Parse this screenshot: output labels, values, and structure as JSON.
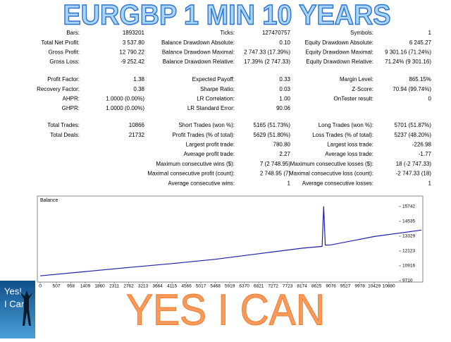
{
  "header": {
    "title": "EURGBP 1 MIN 10 YEARS"
  },
  "stats": [
    [
      [
        {
          "label": "Bars:",
          "value": "1893201"
        },
        {
          "label": "Ticks:",
          "value": "127470757"
        },
        {
          "label": "Symbols:",
          "value": "1"
        }
      ],
      [
        {
          "label": "Total Net Profit:",
          "value": "3 537.80"
        },
        {
          "label": "Balance Drawdown Absolute:",
          "value": "0.10"
        },
        {
          "label": "Equity Drawdown Absolute:",
          "value": "6 245.27"
        }
      ],
      [
        {
          "label": "Gross Profit:",
          "value": "12 790.22"
        },
        {
          "label": "Balance Drawdown Maximal:",
          "value": "2 747.33 (17.39%)"
        },
        {
          "label": "Equity Drawdown Maximal:",
          "value": "9 301.16 (71.24%)"
        }
      ],
      [
        {
          "label": "Gross Loss:",
          "value": "-9 252.42"
        },
        {
          "label": "Balance Drawdown Relative:",
          "value": "17.39% (2 747.33)"
        },
        {
          "label": "Equity Drawdown Relative:",
          "value": "71.24% (9 301.16)"
        }
      ]
    ],
    [
      [
        {
          "label": "Profit Factor:",
          "value": "1.38"
        },
        {
          "label": "Expected Payoff:",
          "value": "0.33"
        },
        {
          "label": "Margin Level:",
          "value": "865.15%"
        }
      ],
      [
        {
          "label": "Recovery Factor:",
          "value": "0.38"
        },
        {
          "label": "Sharpe Ratio:",
          "value": "0.03"
        },
        {
          "label": "Z-Score:",
          "value": "70.94 (99.74%)"
        }
      ],
      [
        {
          "label": "AHPR:",
          "value": "1.0000 (0.00%)"
        },
        {
          "label": "LR Correlation:",
          "value": "1.00"
        },
        {
          "label": "OnTester result:",
          "value": "0"
        }
      ],
      [
        {
          "label": "GHPR:",
          "value": "1.0000 (0.00%)"
        },
        {
          "label": "LR Standard Error:",
          "value": "90.06"
        },
        null
      ]
    ],
    [
      [
        {
          "label": "Total Trades:",
          "value": "10866"
        },
        {
          "label": "Short Trades (won %):",
          "value": "5165 (51.73%)"
        },
        {
          "label": "Long Trades (won %):",
          "value": "5701 (51.87%)"
        }
      ],
      [
        {
          "label": "Total Deals:",
          "value": "21732"
        },
        {
          "label": "Profit Trades (% of total):",
          "value": "5629 (51.80%)"
        },
        {
          "label": "Loss Trades (% of total):",
          "value": "5237 (48.20%)"
        }
      ],
      [
        null,
        {
          "label": "Largest profit trade:",
          "value": "780.80"
        },
        {
          "label": "Largest loss trade:",
          "value": "-226.98"
        }
      ],
      [
        null,
        {
          "label": "Average profit trade:",
          "value": "2.27"
        },
        {
          "label": "Average loss trade:",
          "value": "-1.77"
        }
      ],
      [
        null,
        {
          "label": "Maximum consecutive wins ($):",
          "value": "7 (2 748.95)"
        },
        {
          "label": "Maximum consecutive losses ($):",
          "value": "18 (-2 747.33)"
        }
      ],
      [
        null,
        {
          "label": "Maximal consecutive profit (count):",
          "value": "2 748.95 (7)"
        },
        {
          "label": "Maximal consecutive loss (count):",
          "value": "-2 747.33 (18)"
        }
      ],
      [
        null,
        {
          "label": "Average consecutive wins:",
          "value": "1"
        },
        {
          "label": "Average consecutive losses:",
          "value": "1"
        }
      ]
    ]
  ],
  "balance_chart": {
    "type": "line",
    "title": "Balance",
    "color": "#1f1fa8",
    "x": [
      0,
      1409,
      2762,
      4115,
      5468,
      6821,
      8174,
      8800,
      8850,
      8900,
      9076,
      10429,
      11900
    ],
    "values": [
      10100,
      10450,
      10780,
      11100,
      11450,
      11900,
      12350,
      12500,
      15742,
      12600,
      12620,
      13300,
      13824
    ],
    "xlim": [
      0,
      11900
    ],
    "ylim": [
      9710,
      16020
    ],
    "xticks": [
      0,
      507,
      958,
      1409,
      1860,
      2311,
      2762,
      3213,
      3664,
      4115,
      4566,
      5017,
      5468,
      5919,
      6370,
      6821,
      7272,
      7723,
      8174,
      8625,
      9076,
      9527,
      9978,
      10429,
      10880
    ],
    "yticks": [
      9710,
      10916,
      12123,
      13329,
      14535,
      15742
    ]
  },
  "logo": {
    "line1": "Yes!",
    "line2": "I Can"
  },
  "footer": {
    "slogan": "YES I CAN"
  }
}
